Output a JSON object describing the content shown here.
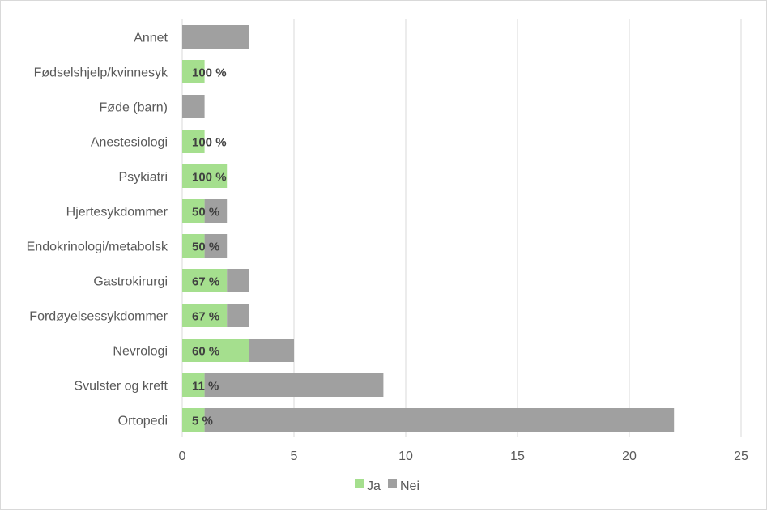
{
  "chart_data": {
    "type": "bar",
    "orientation": "horizontal",
    "stacked": true,
    "categories": [
      "Annet",
      "Fødselshjelp/kvinnesyk",
      "Føde (barn)",
      "Anestesiologi",
      "Psykiatri",
      "Hjertesykdommer",
      "Endokrinologi/metabolsk",
      "Gastrokirurgi",
      "Fordøyelsessykdommer",
      "Nevrologi",
      "Svulster og kreft",
      "Ortopedi"
    ],
    "series": [
      {
        "name": "Ja",
        "color": "#a5df8e",
        "values": [
          0,
          1,
          0,
          1,
          2,
          1,
          1,
          2,
          2,
          3,
          1,
          1
        ]
      },
      {
        "name": "Nei",
        "color": "#a0a0a0",
        "values": [
          3,
          0,
          1,
          0,
          0,
          1,
          1,
          1,
          1,
          2,
          8,
          21
        ]
      }
    ],
    "data_labels": [
      "",
      "100 %",
      "",
      "100 %",
      "100 %",
      "50 %",
      "50 %",
      "67 %",
      "67 %",
      "60 %",
      "11 %",
      "5 %"
    ],
    "xlim": [
      0,
      25
    ],
    "xticks": [
      "0",
      "5",
      "10",
      "15",
      "20",
      "25"
    ],
    "xtick_values": [
      0,
      5,
      10,
      15,
      20,
      25
    ],
    "grid": "vertical",
    "gridline_color": "#d9d9d9",
    "legend_position": "bottom",
    "title": "",
    "xlabel": "",
    "ylabel": ""
  }
}
